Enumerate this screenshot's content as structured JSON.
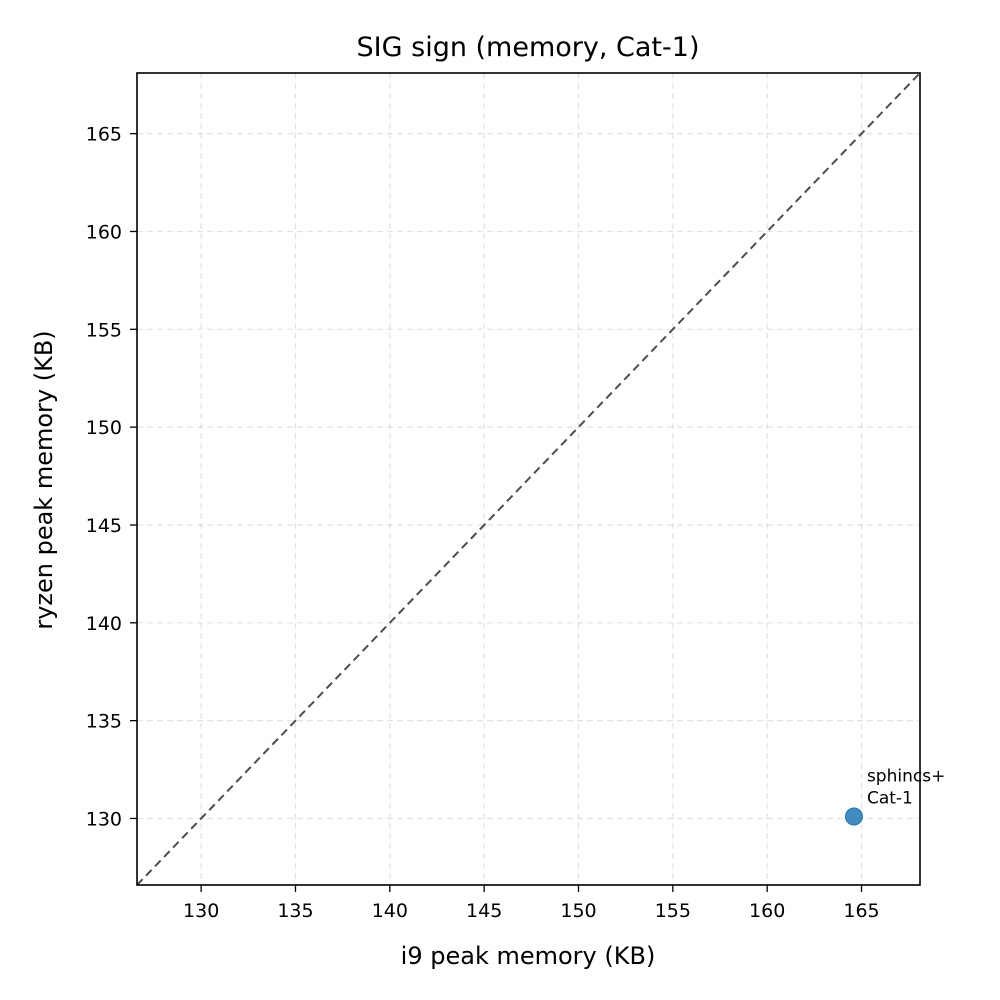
{
  "chart_data": {
    "type": "scatter",
    "title": "SIG sign (memory, Cat-1)",
    "xlabel": "i9 peak memory (KB)",
    "ylabel": "ryzen peak memory (KB)",
    "xlim": [
      126.6,
      168.1
    ],
    "ylim": [
      126.6,
      168.1
    ],
    "xticks": [
      130,
      135,
      140,
      145,
      150,
      155,
      160,
      165
    ],
    "yticks": [
      130,
      135,
      140,
      145,
      150,
      155,
      160,
      165
    ],
    "grid": true,
    "reference_line": "y = x",
    "marker_color": "#1f77b4",
    "points": [
      {
        "x": 164.6,
        "y": 130.1,
        "label_line1": "sphincs+",
        "label_line2": "Cat-1"
      }
    ]
  }
}
